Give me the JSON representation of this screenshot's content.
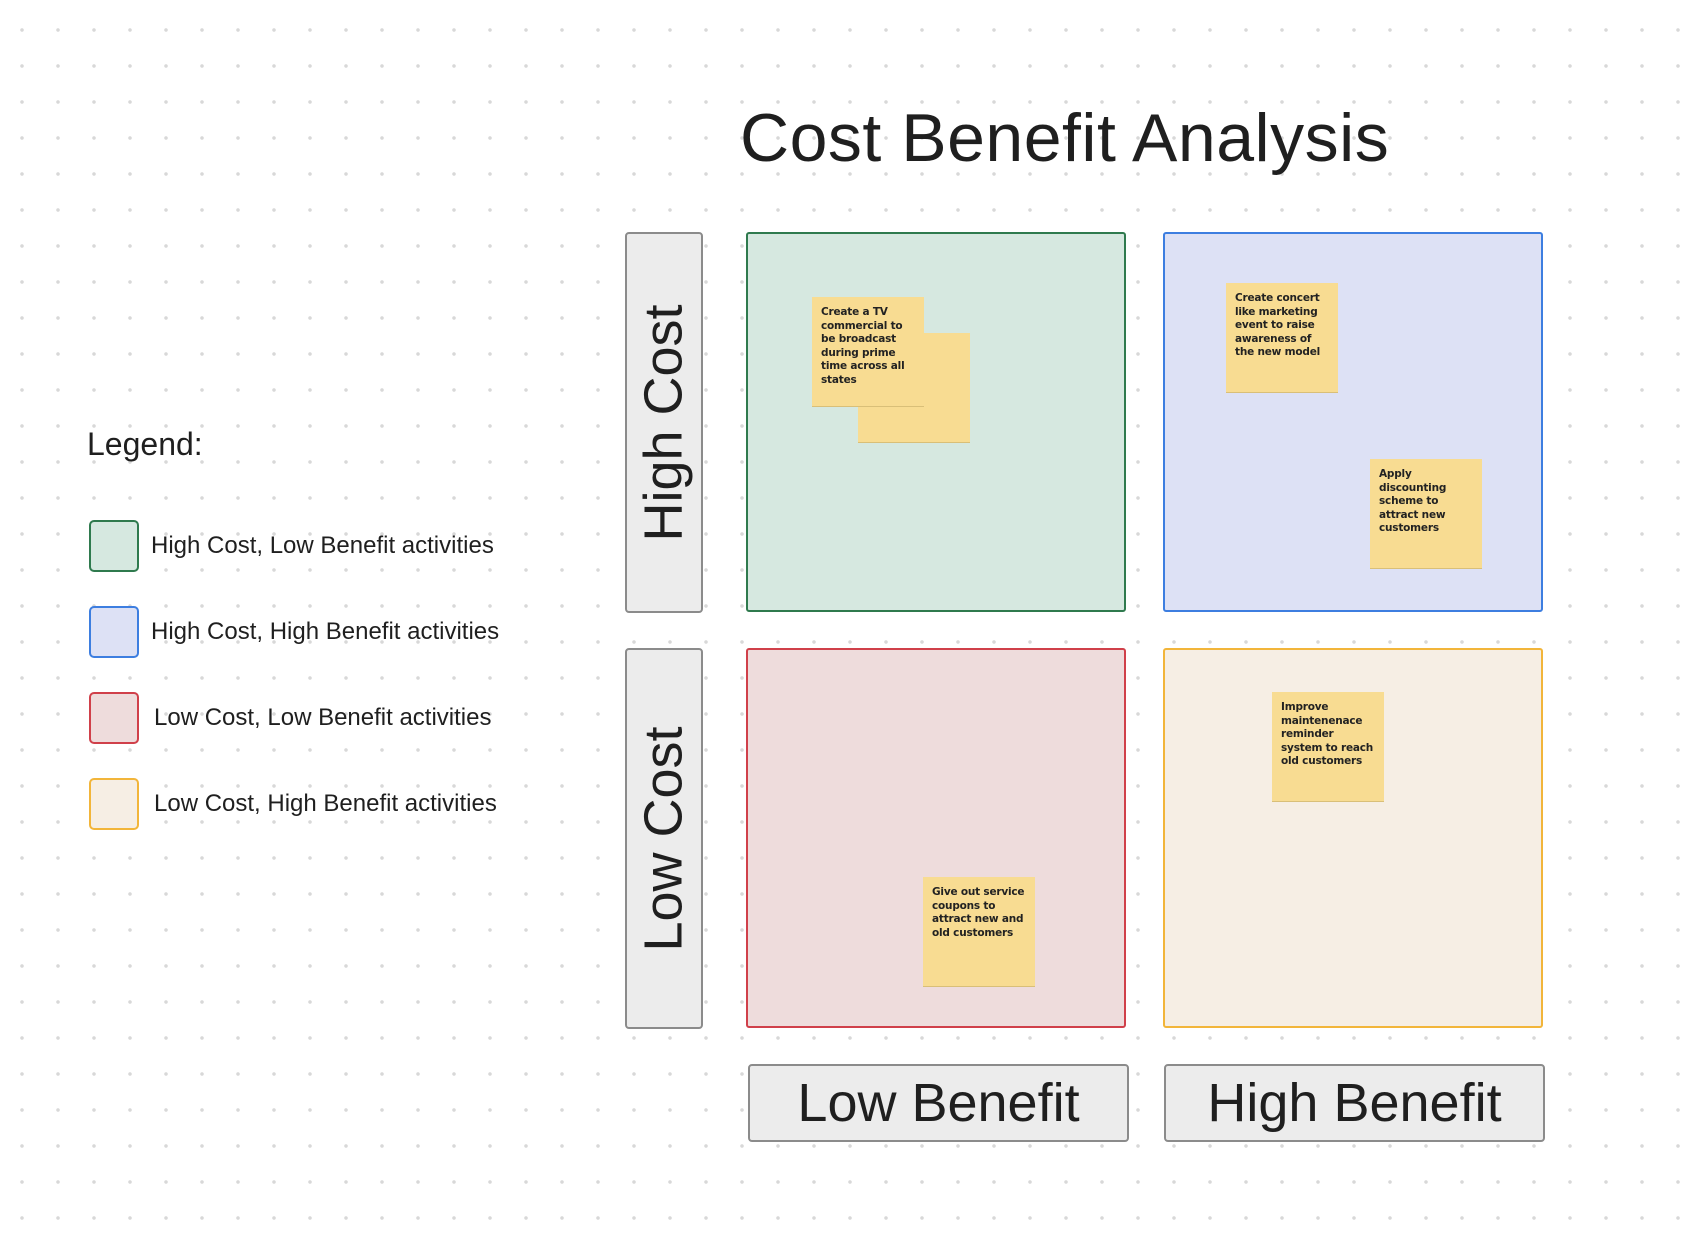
{
  "title": "Cost Benefit Analysis",
  "legend": {
    "title": "Legend:",
    "items": [
      {
        "label": "High Cost, Low Benefit activities",
        "fill": "#d6e8e0",
        "border": "#2f7a4e"
      },
      {
        "label": "High Cost, High Benefit activities",
        "fill": "#dde1f5",
        "border": "#3d7ee0"
      },
      {
        "label": "Low Cost, Low Benefit activities",
        "fill": "#eedcdc",
        "border": "#d0404a"
      },
      {
        "label": "Low Cost, High Benefit activities",
        "fill": "#f6eee4",
        "border": "#f2b53a"
      }
    ]
  },
  "axes": {
    "high_cost": "High Cost",
    "low_cost": "Low Cost",
    "low_benefit": "Low Benefit",
    "high_benefit": "High Benefit"
  },
  "quadrants": {
    "high_cost_low_benefit": {
      "fill": "#d6e8e0",
      "border": "#2f7a4e",
      "notes": [
        "Create a TV commercial to be broadcast during prime time across all states",
        ""
      ]
    },
    "high_cost_high_benefit": {
      "fill": "#dde1f5",
      "border": "#3d7ee0",
      "notes": [
        "Create concert like marketing event to raise awareness of the new model",
        "Apply discounting scheme to attract new customers"
      ]
    },
    "low_cost_low_benefit": {
      "fill": "#eedcdc",
      "border": "#d0404a",
      "notes": [
        "Give out service coupons to attract new and old customers"
      ]
    },
    "low_cost_high_benefit": {
      "fill": "#f6eee4",
      "border": "#f2b53a",
      "notes": [
        "Improve maintenenace reminder system to reach old customers"
      ]
    }
  },
  "sticky_color": "#f8dc92"
}
